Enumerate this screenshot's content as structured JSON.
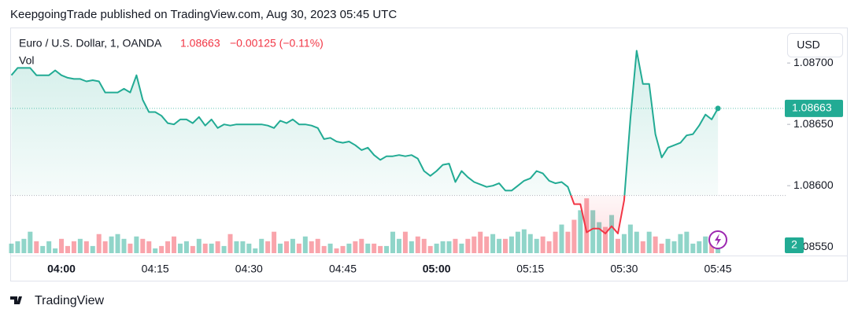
{
  "published": "KeepgoingTrade published on TradingView.com, Aug 30, 2023 05:45 UTC",
  "brand": "TradingView",
  "currency": "USD",
  "chart_data": {
    "type": "line",
    "title": "Euro / U.S. Dollar, 1, OANDA",
    "change_label": "−0.00125 (−0.11%)",
    "up_color": "#22ab94",
    "down_color": "#f23645",
    "baseline": 1.08592,
    "x": [
      "03:52",
      "03:53",
      "03:54",
      "03:55",
      "03:56",
      "03:57",
      "03:58",
      "03:59",
      "04:00",
      "04:01",
      "04:02",
      "04:03",
      "04:04",
      "04:05",
      "04:06",
      "04:07",
      "04:08",
      "04:09",
      "04:10",
      "04:11",
      "04:12",
      "04:13",
      "04:14",
      "04:15",
      "04:16",
      "04:17",
      "04:18",
      "04:19",
      "04:20",
      "04:21",
      "04:22",
      "04:23",
      "04:24",
      "04:25",
      "04:26",
      "04:27",
      "04:28",
      "04:29",
      "04:30",
      "04:31",
      "04:32",
      "04:33",
      "04:34",
      "04:35",
      "04:36",
      "04:37",
      "04:38",
      "04:39",
      "04:40",
      "04:41",
      "04:42",
      "04:43",
      "04:44",
      "04:45",
      "04:46",
      "04:47",
      "04:48",
      "04:49",
      "04:50",
      "04:51",
      "04:52",
      "04:53",
      "04:54",
      "04:55",
      "04:56",
      "04:57",
      "04:58",
      "04:59",
      "05:00",
      "05:01",
      "05:02",
      "05:03",
      "05:04",
      "05:05",
      "05:06",
      "05:07",
      "05:08",
      "05:09",
      "05:10",
      "05:11",
      "05:12",
      "05:13",
      "05:14",
      "05:15",
      "05:16",
      "05:17",
      "05:18",
      "05:19",
      "05:20",
      "05:21",
      "05:22",
      "05:23",
      "05:24",
      "05:25",
      "05:26",
      "05:27",
      "05:28",
      "05:29",
      "05:30",
      "05:31",
      "05:32",
      "05:33",
      "05:34",
      "05:35",
      "05:36",
      "05:37",
      "05:38",
      "05:39",
      "05:40",
      "05:41",
      "05:42",
      "05:43",
      "05:44",
      "05:45"
    ],
    "series": [
      {
        "color": "#22ab94",
        "values": [
          1.0869,
          1.08696,
          1.08696,
          1.08696,
          1.0869,
          1.0869,
          1.0869,
          1.08694,
          1.0869,
          1.08688,
          1.08687,
          1.08687,
          1.08685,
          1.08686,
          1.08685,
          1.08676,
          1.08676,
          1.08676,
          1.08679,
          1.08676,
          1.0869,
          1.0867,
          1.0866,
          1.0866,
          1.08657,
          1.08651,
          1.0865,
          1.08654,
          1.08654,
          1.08651,
          1.08656,
          1.08649,
          1.08654,
          1.08647,
          1.0865,
          1.08649,
          1.0865,
          1.0865,
          1.0865,
          1.0865,
          1.0865,
          1.08649,
          1.08647,
          1.08653,
          1.08651,
          1.08654,
          1.0865,
          1.0865,
          1.08649,
          1.08647,
          1.08638,
          1.08639,
          1.08636,
          1.08635,
          1.08636,
          1.08633,
          1.08629,
          1.08631,
          1.08625,
          1.08621,
          1.08624,
          1.08624,
          1.08625,
          1.08624,
          1.08625,
          1.08622,
          1.08612,
          1.08608,
          1.08612,
          1.08617,
          1.08618,
          1.08603,
          1.08612,
          1.08607,
          1.08603,
          1.08601,
          1.08599,
          1.086,
          1.08602,
          1.08596,
          1.08596,
          1.086,
          1.08604,
          1.08606,
          1.08612,
          1.0861,
          1.08604,
          1.08602,
          1.08603,
          1.08599,
          1.08585,
          1.08585,
          1.08562,
          1.08565,
          1.08565,
          1.08561,
          1.08567,
          1.08561,
          1.08588,
          1.08655,
          1.0871,
          1.08683,
          1.08683,
          1.08642,
          1.08623,
          1.08631,
          1.08633,
          1.08635,
          1.08641,
          1.08642,
          1.08649,
          1.08658,
          1.08654,
          1.08663
        ]
      },
      {
        "name": "Vol",
        "axis": "y3",
        "values": [
          4,
          5,
          6,
          9,
          5,
          3,
          5,
          2,
          6,
          3,
          5,
          6,
          5,
          3,
          8,
          5,
          7,
          8,
          6,
          4,
          7,
          6,
          5,
          2,
          3,
          5,
          7,
          4,
          5,
          3,
          6,
          4,
          4,
          5,
          3,
          8,
          5,
          5,
          4,
          2,
          6,
          5,
          9,
          4,
          5,
          6,
          4,
          7,
          5,
          6,
          3,
          4,
          2,
          3,
          4,
          5,
          6,
          4,
          4,
          3,
          3,
          9,
          6,
          9,
          5,
          7,
          6,
          3,
          4,
          5,
          5,
          6,
          4,
          6,
          7,
          9,
          7,
          8,
          6,
          6,
          7,
          9,
          10,
          8,
          6,
          7,
          5,
          9,
          12,
          9,
          14,
          18,
          23,
          18,
          13,
          11,
          16,
          6,
          8,
          12,
          9,
          5,
          9,
          7,
          4,
          6,
          5,
          8,
          9,
          4,
          5,
          7,
          6,
          2
        ]
      }
    ],
    "ylim": [
      1.08545,
      1.08727
    ],
    "yticks": [
      {
        "value": 1.087,
        "label": "1.08700"
      },
      {
        "value": 1.0865,
        "label": "1.08650"
      },
      {
        "value": 1.086,
        "label": "1.08600"
      },
      {
        "value": 1.0855,
        "label": "1.08550"
      }
    ],
    "y3lim": [
      0,
      30
    ],
    "xticks": [
      "04:00",
      "04:15",
      "04:30",
      "04:45",
      "05:00",
      "05:15",
      "05:30",
      "05:45"
    ]
  }
}
